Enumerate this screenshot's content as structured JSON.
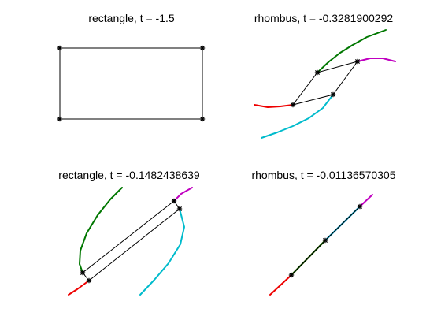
{
  "figure": {
    "panels": [
      {
        "title": "rectangle, t = -1.5",
        "curves": [],
        "polygon": [
          [
            76,
            61
          ],
          [
            257,
            61
          ],
          [
            257,
            151
          ],
          [
            76,
            151
          ]
        ],
        "polygon_color": "#000000",
        "vertices": [
          [
            76,
            61
          ],
          [
            257,
            61
          ],
          [
            257,
            151
          ],
          [
            76,
            151
          ]
        ]
      },
      {
        "title": "rhombus, t = -0.3281900292",
        "curves": [
          {
            "color": "#007700",
            "points": [
              [
                403,
                92
              ],
              [
                418,
                78
              ],
              [
                432,
                67
              ],
              [
                448,
                57
              ],
              [
                466,
                47
              ],
              [
                490,
                38
              ]
            ]
          },
          {
            "color": "#c000c0",
            "points": [
              [
                454,
                78
              ],
              [
                470,
                74
              ],
              [
                486,
                74
              ],
              [
                502,
                78
              ]
            ]
          },
          {
            "color": "#ee0000",
            "points": [
              [
                323,
                133
              ],
              [
                340,
                136
              ],
              [
                356,
                135
              ],
              [
                372,
                133
              ]
            ]
          },
          {
            "color": "#00bbcc",
            "points": [
              [
                332,
                175
              ],
              [
                352,
                168
              ],
              [
                372,
                160
              ],
              [
                392,
                150
              ],
              [
                410,
                137
              ],
              [
                423,
                120
              ]
            ]
          }
        ],
        "polygon": [
          [
            372,
            133
          ],
          [
            403,
            92
          ],
          [
            454,
            78
          ],
          [
            423,
            120
          ]
        ],
        "polygon_color": "#000000",
        "vertices": [
          [
            372,
            133
          ],
          [
            403,
            92
          ],
          [
            454,
            78
          ],
          [
            423,
            120
          ]
        ]
      },
      {
        "title": "rectangle, t = -0.1482438639",
        "curves": [
          {
            "color": "#007700",
            "points": [
              [
                155,
                238
              ],
              [
                140,
                253
              ],
              [
                124,
                273
              ],
              [
                110,
                296
              ],
              [
                102,
                318
              ],
              [
                101,
                335
              ],
              [
                105,
                346
              ]
            ]
          },
          {
            "color": "#c000c0",
            "points": [
              [
                221,
                255
              ],
              [
                230,
                246
              ],
              [
                244,
                238
              ]
            ]
          },
          {
            "color": "#ee0000",
            "points": [
              [
                87,
                374
              ],
              [
                98,
                367
              ],
              [
                113,
                356
              ]
            ]
          },
          {
            "color": "#00bbcc",
            "points": [
              [
                178,
                374
              ],
              [
                196,
                355
              ],
              [
                214,
                334
              ],
              [
                229,
                310
              ],
              [
                234,
                288
              ],
              [
                228,
                265
              ]
            ]
          }
        ],
        "polygon": [
          [
            105,
            346
          ],
          [
            221,
            255
          ],
          [
            228,
            265
          ],
          [
            113,
            356
          ]
        ],
        "polygon_color": "#000000",
        "vertices": [
          [
            105,
            346
          ],
          [
            221,
            255
          ],
          [
            228,
            265
          ],
          [
            113,
            356
          ]
        ]
      },
      {
        "title": "rhombus, t = -0.01136570305",
        "curves": [
          {
            "color": "#ee0000",
            "points": [
              [
                343,
                374
              ],
              [
                370,
                349
              ],
              [
                413,
                305
              ]
            ]
          },
          {
            "color": "#007700",
            "points": [
              [
                370,
                349
              ],
              [
                413,
                305
              ]
            ]
          },
          {
            "color": "#c000c0",
            "points": [
              [
                413,
                305
              ],
              [
                457,
                262
              ],
              [
                473,
                247
              ]
            ]
          },
          {
            "color": "#00bbcc",
            "points": [
              [
                413,
                305
              ],
              [
                457,
                262
              ]
            ]
          }
        ],
        "polygon": [
          [
            370,
            349
          ],
          [
            413,
            305
          ],
          [
            457,
            262
          ],
          [
            413,
            305
          ]
        ],
        "polygon_color": "#000000",
        "vertices": [
          [
            370,
            349
          ],
          [
            413,
            305
          ],
          [
            457,
            262
          ]
        ]
      }
    ]
  }
}
